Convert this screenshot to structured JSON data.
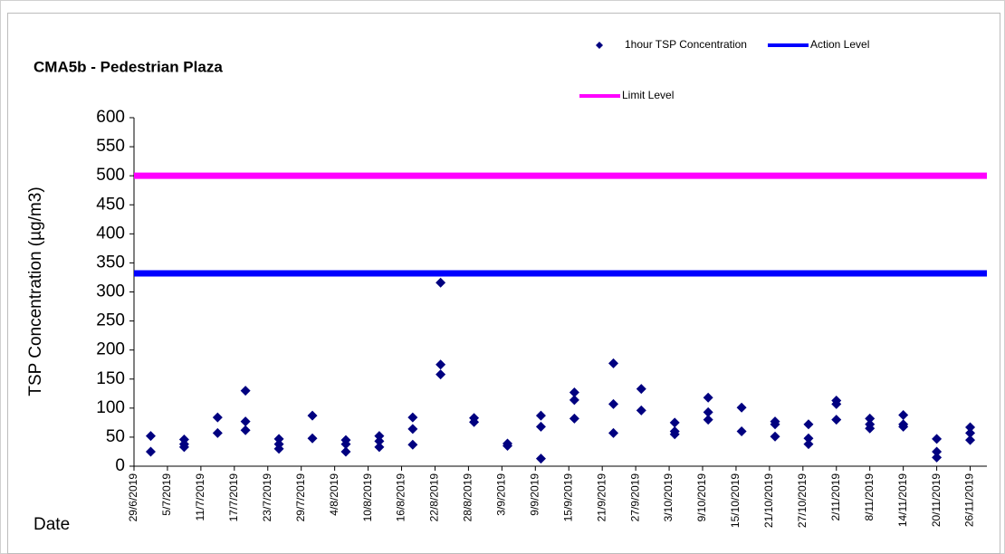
{
  "chart_data": {
    "type": "scatter",
    "title": "CMA5b - Pedestrian Plaza",
    "y_label": "TSP Concentration (µg/m3)",
    "x_label": "Date",
    "xlim": [
      "2019-06-29",
      "2019-11-29"
    ],
    "xticks": [
      {
        "value": "2019-06-29",
        "label": "29/6/2019"
      },
      {
        "value": "2019-07-05",
        "label": "5/7/2019"
      },
      {
        "value": "2019-07-11",
        "label": "11/7/2019"
      },
      {
        "value": "2019-07-17",
        "label": "17/7/2019"
      },
      {
        "value": "2019-07-23",
        "label": "23/7/2019"
      },
      {
        "value": "2019-07-29",
        "label": "29/7/2019"
      },
      {
        "value": "2019-08-04",
        "label": "4/8/2019"
      },
      {
        "value": "2019-08-10",
        "label": "10/8/2019"
      },
      {
        "value": "2019-08-16",
        "label": "16/8/2019"
      },
      {
        "value": "2019-08-22",
        "label": "22/8/2019"
      },
      {
        "value": "2019-08-28",
        "label": "28/8/2019"
      },
      {
        "value": "2019-09-03",
        "label": "3/9/2019"
      },
      {
        "value": "2019-09-09",
        "label": "9/9/2019"
      },
      {
        "value": "2019-09-15",
        "label": "15/9/2019"
      },
      {
        "value": "2019-09-21",
        "label": "21/9/2019"
      },
      {
        "value": "2019-09-27",
        "label": "27/9/2019"
      },
      {
        "value": "2019-10-03",
        "label": "3/10/2019"
      },
      {
        "value": "2019-10-09",
        "label": "9/10/2019"
      },
      {
        "value": "2019-10-15",
        "label": "15/10/2019"
      },
      {
        "value": "2019-10-21",
        "label": "21/10/2019"
      },
      {
        "value": "2019-10-27",
        "label": "27/10/2019"
      },
      {
        "value": "2019-11-02",
        "label": "2/11/2019"
      },
      {
        "value": "2019-11-08",
        "label": "8/11/2019"
      },
      {
        "value": "2019-11-14",
        "label": "14/11/2019"
      },
      {
        "value": "2019-11-20",
        "label": "20/11/2019"
      },
      {
        "value": "2019-11-26",
        "label": "26/11/2019"
      }
    ],
    "ylim": [
      0,
      600
    ],
    "yticks": [
      0,
      50,
      100,
      150,
      200,
      250,
      300,
      350,
      400,
      450,
      500,
      550,
      600
    ],
    "grid": false,
    "series": [
      {
        "name": "1hour TSP Concentration",
        "color": "#000080",
        "marker": "diamond",
        "x": [
          "2019-07-02",
          "2019-07-02",
          "2019-07-08",
          "2019-07-08",
          "2019-07-08",
          "2019-07-14",
          "2019-07-14",
          "2019-07-19",
          "2019-07-19",
          "2019-07-19",
          "2019-07-25",
          "2019-07-25",
          "2019-07-25",
          "2019-07-31",
          "2019-07-31",
          "2019-08-06",
          "2019-08-06",
          "2019-08-06",
          "2019-08-12",
          "2019-08-12",
          "2019-08-12",
          "2019-08-18",
          "2019-08-18",
          "2019-08-18",
          "2019-08-23",
          "2019-08-23",
          "2019-08-23",
          "2019-08-29",
          "2019-08-29",
          "2019-09-04",
          "2019-09-04",
          "2019-09-10",
          "2019-09-10",
          "2019-09-10",
          "2019-09-16",
          "2019-09-16",
          "2019-09-16",
          "2019-09-23",
          "2019-09-23",
          "2019-09-23",
          "2019-09-28",
          "2019-09-28",
          "2019-10-04",
          "2019-10-04",
          "2019-10-04",
          "2019-10-10",
          "2019-10-10",
          "2019-10-10",
          "2019-10-16",
          "2019-10-16",
          "2019-10-22",
          "2019-10-22",
          "2019-10-22",
          "2019-10-28",
          "2019-10-28",
          "2019-10-28",
          "2019-11-02",
          "2019-11-02",
          "2019-11-02",
          "2019-11-08",
          "2019-11-08",
          "2019-11-08",
          "2019-11-14",
          "2019-11-14",
          "2019-11-14",
          "2019-11-20",
          "2019-11-20",
          "2019-11-20",
          "2019-11-26",
          "2019-11-26",
          "2019-11-26"
        ],
        "values": [
          52,
          25,
          46,
          38,
          33,
          84,
          57,
          130,
          77,
          62,
          47,
          38,
          30,
          87,
          48,
          45,
          38,
          25,
          52,
          43,
          33,
          84,
          64,
          37,
          316,
          175,
          158,
          83,
          76,
          39,
          35,
          87,
          68,
          13,
          127,
          114,
          82,
          177,
          107,
          57,
          133,
          96,
          75,
          60,
          55,
          118,
          93,
          80,
          101,
          60,
          77,
          72,
          51,
          72,
          48,
          38,
          113,
          107,
          80,
          82,
          72,
          65,
          88,
          72,
          68,
          47,
          25,
          15,
          67,
          57,
          45
        ]
      },
      {
        "name": "Action Level",
        "color": "#0000ff",
        "x": [
          "2019-06-29",
          "2019-11-29"
        ],
        "values": [
          332,
          332
        ]
      },
      {
        "name": "Limit Level",
        "color": "#ff00ff",
        "x": [
          "2019-06-29",
          "2019-11-29"
        ],
        "values": [
          500,
          500
        ]
      }
    ]
  }
}
